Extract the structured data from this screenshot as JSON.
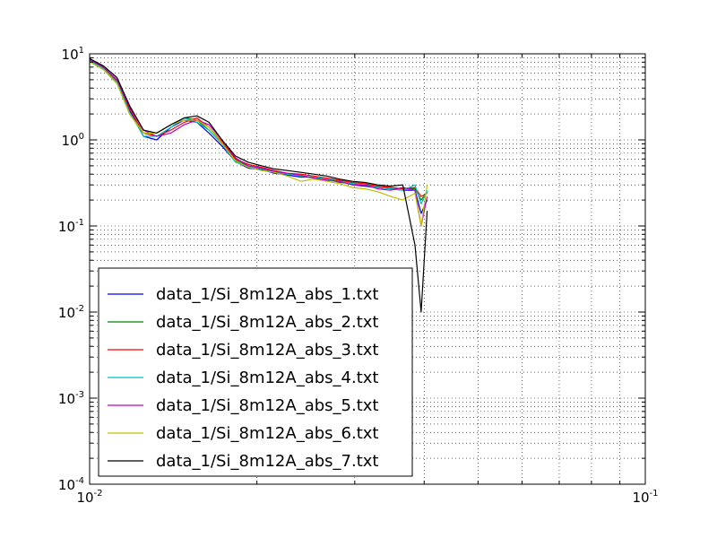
{
  "chart_data": {
    "type": "line",
    "title": "",
    "xlabel": "",
    "ylabel": "",
    "xscale": "log",
    "yscale": "log",
    "xlim": [
      0.01,
      0.1
    ],
    "ylim": [
      0.0001,
      10
    ],
    "grid": true,
    "legend_position": "lower-left",
    "x_ticks": [
      {
        "base": "10",
        "exp": "-2"
      },
      {
        "base": "10",
        "exp": "-1"
      }
    ],
    "y_ticks": [
      {
        "base": "10",
        "exp": "1"
      },
      {
        "base": "10",
        "exp": "0"
      },
      {
        "base": "10",
        "exp": "-1"
      },
      {
        "base": "10",
        "exp": "-2"
      },
      {
        "base": "10",
        "exp": "-3"
      },
      {
        "base": "10",
        "exp": "-4"
      }
    ],
    "x": [
      0.01,
      0.0106,
      0.0112,
      0.0118,
      0.0125,
      0.0132,
      0.014,
      0.0148,
      0.0156,
      0.0164,
      0.0173,
      0.0183,
      0.0193,
      0.0204,
      0.0215,
      0.0227,
      0.024,
      0.0253,
      0.0267,
      0.0282,
      0.0297,
      0.0313,
      0.033,
      0.0348,
      0.0366,
      0.0385,
      0.0395,
      0.0405
    ],
    "series": [
      {
        "name": "data_1/Si_8m12A_abs_1.txt",
        "color": "#0000ff",
        "values": [
          8.5,
          6.8,
          4.8,
          2.2,
          1.1,
          1.0,
          1.4,
          1.7,
          1.6,
          1.2,
          0.85,
          0.56,
          0.47,
          0.45,
          0.41,
          0.39,
          0.37,
          0.37,
          0.34,
          0.33,
          0.3,
          0.29,
          0.28,
          0.27,
          0.26,
          0.26,
          0.14,
          0.2
        ]
      },
      {
        "name": "data_1/Si_8m12A_abs_2.txt",
        "color": "#008000",
        "values": [
          8.2,
          6.6,
          4.6,
          2.0,
          1.2,
          1.2,
          1.5,
          1.8,
          1.7,
          1.3,
          0.9,
          0.58,
          0.5,
          0.46,
          0.42,
          0.4,
          0.38,
          0.36,
          0.35,
          0.32,
          0.31,
          0.3,
          0.29,
          0.28,
          0.27,
          0.27,
          0.2,
          0.25
        ]
      },
      {
        "name": "data_1/Si_8m12A_abs_3.txt",
        "color": "#ff0000",
        "values": [
          8.4,
          6.9,
          4.9,
          2.3,
          1.2,
          1.1,
          1.3,
          1.6,
          1.8,
          1.4,
          0.95,
          0.6,
          0.52,
          0.48,
          0.44,
          0.41,
          0.4,
          0.38,
          0.36,
          0.34,
          0.32,
          0.31,
          0.29,
          0.28,
          0.27,
          0.28,
          0.22,
          0.24
        ]
      },
      {
        "name": "data_1/Si_8m12A_abs_4.txt",
        "color": "#00bfbf",
        "values": [
          8.3,
          6.7,
          4.7,
          2.1,
          1.1,
          1.1,
          1.4,
          1.8,
          1.6,
          1.3,
          0.9,
          0.55,
          0.49,
          0.46,
          0.43,
          0.4,
          0.38,
          0.37,
          0.35,
          0.33,
          0.31,
          0.3,
          0.28,
          0.27,
          0.26,
          0.3,
          0.18,
          0.26
        ]
      },
      {
        "name": "data_1/Si_8m12A_abs_5.txt",
        "color": "#bf00bf",
        "values": [
          8.6,
          7.0,
          5.0,
          2.4,
          1.3,
          1.1,
          1.2,
          1.5,
          1.7,
          1.5,
          1.0,
          0.62,
          0.5,
          0.47,
          0.43,
          0.41,
          0.39,
          0.36,
          0.34,
          0.33,
          0.3,
          0.3,
          0.27,
          0.26,
          0.28,
          0.26,
          0.1,
          0.22
        ]
      },
      {
        "name": "data_1/Si_8m12A_abs_6.txt",
        "color": "#bfbf00",
        "values": [
          8.1,
          6.5,
          4.5,
          2.0,
          1.2,
          1.2,
          1.5,
          1.7,
          1.7,
          1.4,
          0.92,
          0.57,
          0.48,
          0.44,
          0.42,
          0.38,
          0.33,
          0.35,
          0.33,
          0.31,
          0.28,
          0.27,
          0.25,
          0.22,
          0.2,
          0.24,
          0.1,
          0.3
        ]
      },
      {
        "name": "data_1/Si_8m12A_abs_7.txt",
        "color": "#000000",
        "values": [
          8.8,
          7.2,
          5.3,
          2.5,
          1.3,
          1.2,
          1.5,
          1.8,
          1.9,
          1.6,
          1.0,
          0.65,
          0.55,
          0.5,
          0.46,
          0.44,
          0.42,
          0.4,
          0.38,
          0.35,
          0.33,
          0.32,
          0.3,
          0.29,
          0.3,
          0.06,
          0.01,
          0.15
        ]
      }
    ]
  }
}
